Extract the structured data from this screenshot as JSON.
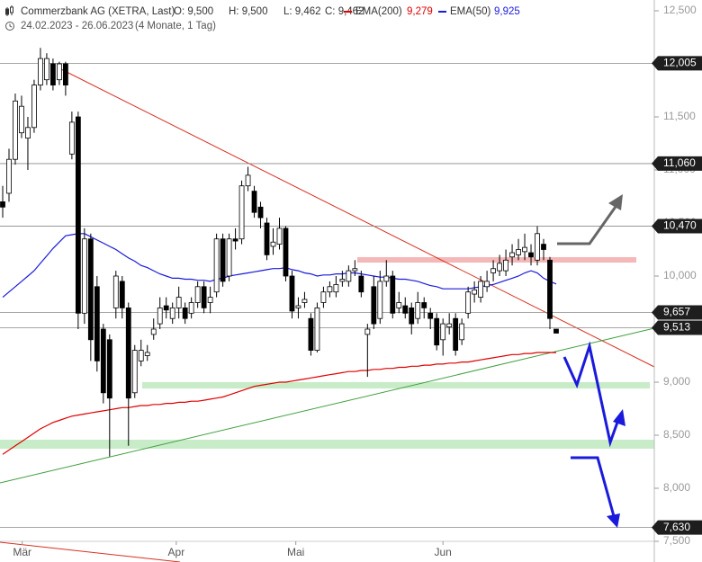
{
  "chart_data": {
    "type": "candlestick",
    "title": "Commerzbank AG (XETRA, Last)",
    "info": [
      "O: 9,500",
      "H: 9,500",
      "L: 9,462",
      "C: 9,462"
    ],
    "subtitle": "24.02.2023 - 26.06.2023",
    "period": "(4 Monate, 1 Tag)",
    "ylim": [
      7.5,
      12.5
    ],
    "yticks": [
      {
        "value": 7.5,
        "label": "7,500"
      },
      {
        "value": 8,
        "label": "8,000"
      },
      {
        "value": 8.5,
        "label": "8,500"
      },
      {
        "value": 9,
        "label": "9,000"
      },
      {
        "value": 9.5,
        "label": "9,500"
      },
      {
        "value": 10,
        "label": "10,000"
      },
      {
        "value": 10.5,
        "label": "10,500"
      },
      {
        "value": 11,
        "label": "11,000"
      },
      {
        "value": 11.5,
        "label": "11,500"
      },
      {
        "value": 12,
        "label": "12,000"
      },
      {
        "value": 12.5,
        "label": "12,500"
      }
    ],
    "xlim": [
      -0.43,
      103.6
    ],
    "xticks": [
      {
        "value": 3.1,
        "label": "Mär"
      },
      {
        "value": 27.6,
        "label": "Apr"
      },
      {
        "value": 46.6,
        "label": "Mai"
      },
      {
        "value": 70,
        "label": "Jun"
      }
    ],
    "levels": [
      {
        "value": 12.005,
        "label": "12,005"
      },
      {
        "value": 11.06,
        "label": "11,060"
      },
      {
        "value": 10.47,
        "label": "10,470"
      },
      {
        "value": 9.657,
        "label": "9,657"
      },
      {
        "value": 9.513,
        "label": "9,513"
      },
      {
        "value": 7.63,
        "label": "7,630"
      }
    ],
    "up_color": "#ffffff",
    "down_color": "#000000",
    "open": [
      10.7,
      10.78,
      11.1,
      11.35,
      11.3,
      11.4,
      11.8,
      11.85,
      12.0,
      11.85,
      12.0,
      11.15,
      11.5,
      9.65,
      10.35,
      9.9,
      9.5,
      9.4,
      9.7,
      9.95,
      9.7,
      8.9,
      9.2,
      9.25,
      9.45,
      9.55,
      9.72,
      9.6,
      9.7,
      9.7,
      9.65,
      9.75,
      9.9,
      9.75,
      9.85,
      10.35,
      10.0,
      10.35,
      10.35,
      10.85,
      10.8,
      10.65,
      10.5,
      10.28,
      10.3,
      10.45,
      10.0,
      9.7,
      9.75,
      9.6,
      9.3,
      9.75,
      9.85,
      9.85,
      9.95,
      9.95,
      10.05,
      10.0,
      9.45,
      9.9,
      9.6,
      9.95,
      10.0,
      9.7,
      9.72,
      9.7,
      9.6,
      9.75,
      9.65,
      9.6,
      9.4,
      9.52,
      9.6,
      9.4,
      9.65,
      9.83,
      9.8,
      9.9,
      10.03,
      10.05,
      10.05,
      10.18,
      10.2,
      10.23,
      10.22,
      10.15,
      10.3,
      10.15,
      9.5
    ],
    "high": [
      10.85,
      11.2,
      11.72,
      11.7,
      11.5,
      11.85,
      12.15,
      12.1,
      12.05,
      12.02,
      12.02,
      11.55,
      11.55,
      10.45,
      10.4,
      10.0,
      9.55,
      9.45,
      10.05,
      10.0,
      9.75,
      9.35,
      9.4,
      9.35,
      9.6,
      9.8,
      9.8,
      9.75,
      9.9,
      9.75,
      9.8,
      9.95,
      9.95,
      9.9,
      10.4,
      10.4,
      10.4,
      10.45,
      10.9,
      11.03,
      10.85,
      10.7,
      10.55,
      10.45,
      10.55,
      10.47,
      10.05,
      9.8,
      9.85,
      9.65,
      9.75,
      9.9,
      9.95,
      10.0,
      10.05,
      10.1,
      10.15,
      10.05,
      9.55,
      10.0,
      10.05,
      10.15,
      10.05,
      9.85,
      9.8,
      9.75,
      9.85,
      9.8,
      9.7,
      9.65,
      9.6,
      9.65,
      9.65,
      9.6,
      9.9,
      9.95,
      10.0,
      10.05,
      10.15,
      10.2,
      10.25,
      10.3,
      10.35,
      10.4,
      10.3,
      10.47,
      10.35,
      10.18,
      9.5
    ],
    "low": [
      10.55,
      10.7,
      11.05,
      11.3,
      11.0,
      11.35,
      11.75,
      11.8,
      11.75,
      11.8,
      11.7,
      11.1,
      9.5,
      9.55,
      9.2,
      9.1,
      8.8,
      8.3,
      9.6,
      9.6,
      8.4,
      8.85,
      9.15,
      9.2,
      9.4,
      9.5,
      9.6,
      9.55,
      9.6,
      9.55,
      9.6,
      9.7,
      9.65,
      9.65,
      9.8,
      9.9,
      9.95,
      10.25,
      10.3,
      10.8,
      10.55,
      10.45,
      10.15,
      10.2,
      10.25,
      9.95,
      9.6,
      9.6,
      9.7,
      9.25,
      9.28,
      9.7,
      9.8,
      9.8,
      9.9,
      9.9,
      10.0,
      9.8,
      9.05,
      9.5,
      9.55,
      9.9,
      9.6,
      9.65,
      9.6,
      9.45,
      9.55,
      9.6,
      9.5,
      9.3,
      9.25,
      9.45,
      9.25,
      9.35,
      9.6,
      9.75,
      9.75,
      9.85,
      9.95,
      10.0,
      10.0,
      10.1,
      10.15,
      10.15,
      10.1,
      10.1,
      10.15,
      9.5,
      9.462
    ],
    "close": [
      10.65,
      11.1,
      11.65,
      11.6,
      11.4,
      11.8,
      12.05,
      12.05,
      11.8,
      12.0,
      11.8,
      11.45,
      9.65,
      10.35,
      9.4,
      9.2,
      8.9,
      8.85,
      10.0,
      9.7,
      8.85,
      9.3,
      9.3,
      9.28,
      9.5,
      9.7,
      9.68,
      9.7,
      9.8,
      9.6,
      9.75,
      9.9,
      9.7,
      9.8,
      10.35,
      9.95,
      10.35,
      10.33,
      10.85,
      10.95,
      10.6,
      10.55,
      10.2,
      10.32,
      10.45,
      10.0,
      9.67,
      9.72,
      9.78,
      9.3,
      9.7,
      9.85,
      9.9,
      9.92,
      9.97,
      10.05,
      10.07,
      9.85,
      9.5,
      9.55,
      9.95,
      10.0,
      9.65,
      9.75,
      9.65,
      9.55,
      9.75,
      9.7,
      9.6,
      9.35,
      9.55,
      9.55,
      9.3,
      9.55,
      9.85,
      9.87,
      9.95,
      9.95,
      10.07,
      10.12,
      10.15,
      10.22,
      10.25,
      10.27,
      10.18,
      10.4,
      10.25,
      9.6,
      9.462
    ],
    "series": [
      {
        "name": "EMA(200)",
        "last_label": "9,279",
        "color": "#e00000",
        "values": [
          8.32,
          8.36,
          8.4,
          8.44,
          8.48,
          8.52,
          8.56,
          8.59,
          8.62,
          8.64,
          8.66,
          8.68,
          8.69,
          8.7,
          8.71,
          8.72,
          8.73,
          8.74,
          8.75,
          8.76,
          8.76,
          8.77,
          8.78,
          8.78,
          8.79,
          8.79,
          8.8,
          8.8,
          8.81,
          8.81,
          8.82,
          8.82,
          8.83,
          8.84,
          8.85,
          8.86,
          8.88,
          8.9,
          8.92,
          8.94,
          8.96,
          8.97,
          8.98,
          8.99,
          9.0,
          9.0,
          9.01,
          9.02,
          9.03,
          9.04,
          9.05,
          9.06,
          9.07,
          9.08,
          9.09,
          9.1,
          9.1,
          9.11,
          9.11,
          9.12,
          9.12,
          9.13,
          9.13,
          9.14,
          9.14,
          9.15,
          9.15,
          9.16,
          9.16,
          9.17,
          9.17,
          9.18,
          9.18,
          9.19,
          9.19,
          9.2,
          9.21,
          9.22,
          9.23,
          9.24,
          9.25,
          9.26,
          9.26,
          9.27,
          9.27,
          9.28,
          9.28,
          9.28,
          9.279
        ]
      },
      {
        "name": "EMA(50)",
        "last_label": "9,925",
        "color": "#1a1adc",
        "values": [
          9.8,
          9.85,
          9.9,
          9.95,
          10.0,
          10.05,
          10.12,
          10.19,
          10.26,
          10.32,
          10.38,
          10.39,
          10.4,
          10.4,
          10.37,
          10.34,
          10.31,
          10.28,
          10.25,
          10.21,
          10.17,
          10.14,
          10.1,
          10.08,
          10.05,
          10.02,
          10.0,
          9.98,
          9.98,
          9.97,
          9.97,
          9.96,
          9.96,
          9.95,
          9.97,
          9.98,
          10.0,
          10.01,
          10.02,
          10.03,
          10.04,
          10.05,
          10.06,
          10.07,
          10.07,
          10.08,
          10.06,
          10.05,
          10.03,
          10.02,
          10.0,
          10.01,
          10.01,
          10.02,
          10.02,
          10.03,
          10.03,
          10.02,
          10.01,
          10.0,
          9.99,
          9.99,
          9.98,
          9.97,
          9.97,
          9.96,
          9.95,
          9.93,
          9.91,
          9.9,
          9.88,
          9.88,
          9.88,
          9.88,
          9.88,
          9.89,
          9.9,
          9.91,
          9.92,
          9.94,
          9.96,
          9.98,
          10.0,
          10.03,
          10.05,
          10.03,
          9.98,
          9.95,
          9.925
        ]
      }
    ]
  }
}
